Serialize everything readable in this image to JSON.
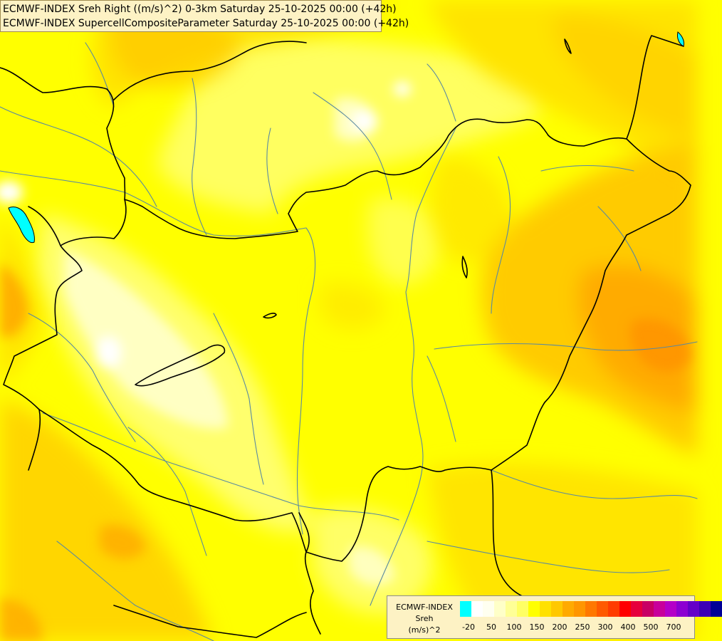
{
  "header": {
    "title_line1": "ECMWF-INDEX Sreh Right ((m/s)^2) 0-3km Saturday 25-10-2025 00:00 (+42h)",
    "title_line2": "ECMWF-INDEX SupercellCompositeParameter Saturday 25-10-2025 00:00 (+42h)"
  },
  "legend": {
    "label_lines": [
      "ECMWF-INDEX",
      "Sreh",
      "(m/s)^2"
    ],
    "colors": [
      "#00ffff",
      "#ffffff",
      "#fffff0",
      "#ffffc8",
      "#ffff96",
      "#ffff64",
      "#ffff00",
      "#ffe100",
      "#ffc800",
      "#ffaa00",
      "#ff9600",
      "#ff7800",
      "#ff5a00",
      "#ff3c00",
      "#ff0000",
      "#e6003c",
      "#c80064",
      "#c8009b",
      "#b400c8",
      "#8c00d2",
      "#6400c8",
      "#3c00b4",
      "#000096"
    ],
    "ticks": [
      "-20",
      "50",
      "100",
      "150",
      "200",
      "250",
      "300",
      "400",
      "500",
      "700"
    ]
  },
  "map": {
    "colors": {
      "base": "#ffff00",
      "light": "#ffff80",
      "pale": "#ffffc8",
      "white": "#ffffff",
      "gold": "#ffe100",
      "amber": "#ffc800",
      "orange": "#ffaa00",
      "deep_orange": "#ff9600",
      "lake_fill": "#00ffff",
      "river": "#5a8aa0",
      "border": "#000000"
    }
  }
}
